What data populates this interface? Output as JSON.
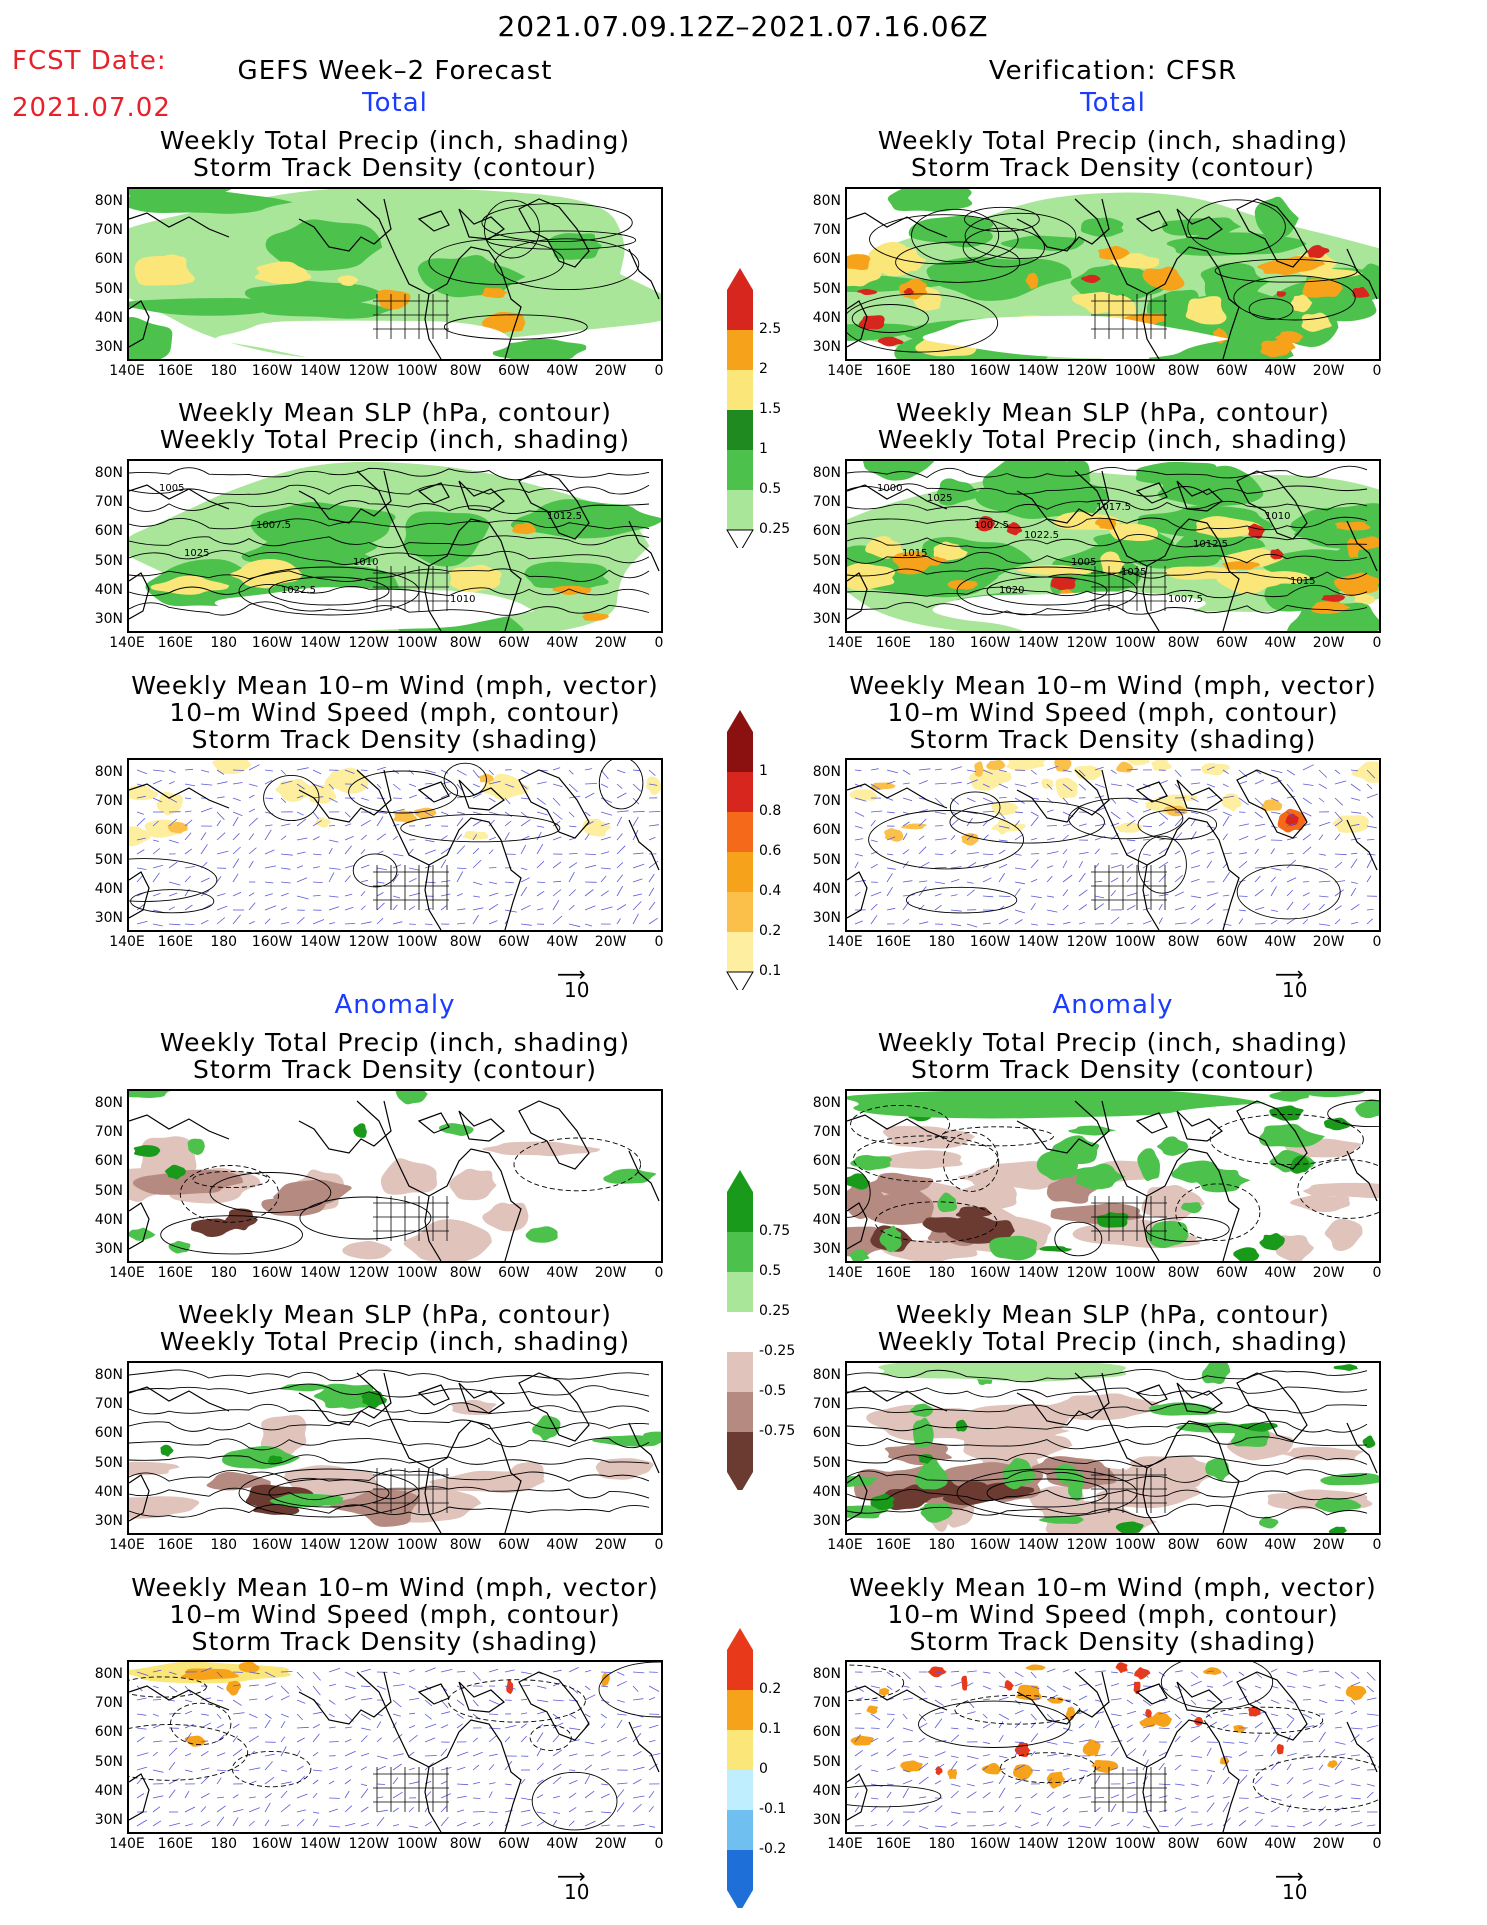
{
  "header": {
    "date_range": "2021.07.09.12Z–2021.07.16.06Z",
    "fcst_label": "FCST Date:",
    "fcst_date": "2021.07.02",
    "left_title": "GEFS Week–2 Forecast",
    "right_title": "Verification: CFSR"
  },
  "sections": {
    "total": "Total",
    "anomaly": "Anomaly"
  },
  "panel_titles": {
    "precip_storm": [
      "Weekly Total Precip (inch, shading)",
      "Storm Track Density (contour)"
    ],
    "slp_precip": [
      "Weekly Mean SLP (hPa, contour)",
      "Weekly Total Precip (inch, shading)"
    ],
    "wind": [
      "Weekly Mean 10–m Wind (mph, vector)",
      "10–m Wind Speed (mph, contour)",
      "Storm Track Density (shading)"
    ]
  },
  "axes": {
    "lat_labels": [
      "80N",
      "70N",
      "60N",
      "50N",
      "40N",
      "30N"
    ],
    "lon_labels": [
      "140E",
      "160E",
      "180",
      "160W",
      "140W",
      "120W",
      "100W",
      "80W",
      "60W",
      "40W",
      "20W",
      "0"
    ]
  },
  "vector_ref": "10",
  "colorbars": {
    "precip_total": {
      "labels": [
        "2.5",
        "2",
        "1.5",
        "1",
        "0.5",
        "0.25"
      ],
      "colors": [
        "#d7261e",
        "#f7a21b",
        "#fbe67a",
        "#1f8a1f",
        "#4cc24c",
        "#a9e69a"
      ]
    },
    "storm_total": {
      "labels": [
        "1",
        "0.8",
        "0.6",
        "0.4",
        "0.2",
        "0.1"
      ],
      "colors": [
        "#8b1010",
        "#d7261e",
        "#f46a1a",
        "#f7a21b",
        "#fbc04a",
        "#fdeea0"
      ]
    },
    "precip_anom": {
      "labels": [
        "0.75",
        "0.5",
        "0.25",
        "-0.25",
        "-0.5",
        "-0.75"
      ],
      "colors": [
        "#1a9a1a",
        "#4cc24c",
        "#a9e69a",
        "#ffffff",
        "#e0c4bc",
        "#b58a80",
        "#6b3a30"
      ]
    },
    "storm_anom": {
      "labels": [
        "0.2",
        "0.1",
        "0",
        "-0.1",
        "-0.2"
      ],
      "colors": [
        "#e83a1a",
        "#f7a21b",
        "#fbe67a",
        "#bfefff",
        "#6fc0f0",
        "#1f6fd8"
      ]
    }
  },
  "contour_labels": {
    "slp_fcst": [
      "1005",
      "1007.5",
      "1010",
      "1010",
      "1012.5",
      "1025",
      "1022.5"
    ],
    "slp_cfsr": [
      "1000",
      "1002.5",
      "1005",
      "1007.5",
      "1010",
      "1015",
      "1020",
      "1017.5",
      "1012.5",
      "1015",
      "1025",
      "1022.5",
      "1025"
    ]
  }
}
